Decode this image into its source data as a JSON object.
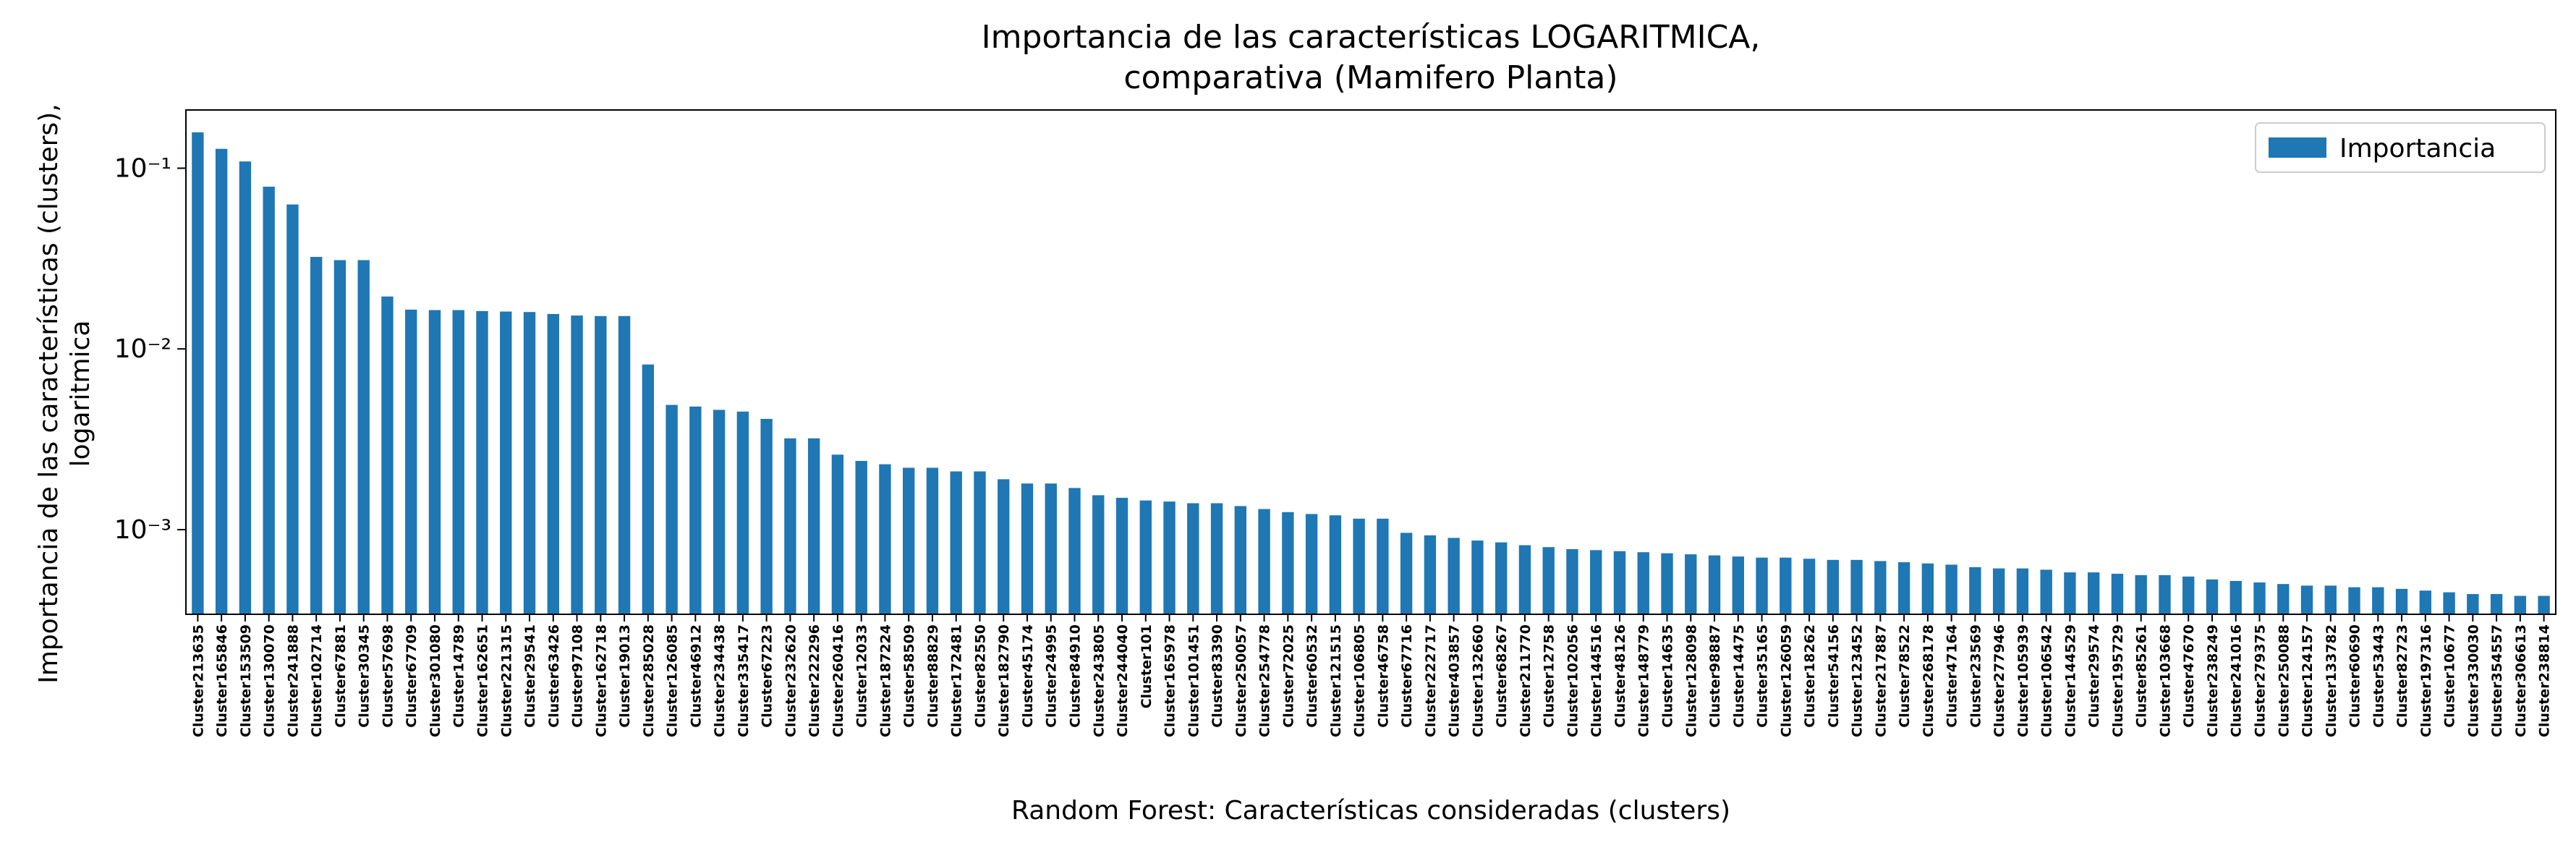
{
  "chart_data": {
    "type": "bar",
    "title": "Importancia de las características LOGARITMICA,\ncomparativa (Mamifero Planta)",
    "ylabel": "Importancia de las características (clusters),\nlogaritmica",
    "xlabel": "Random Forest: Características consideradas (clusters)",
    "log_y": true,
    "legend": "upper right",
    "ylim": [
      0.00034,
      0.21
    ],
    "yticks": [
      {
        "value": 0.001,
        "label": "10⁻³"
      },
      {
        "value": 0.01,
        "label": "10⁻²"
      },
      {
        "value": 0.1,
        "label": "10⁻¹"
      }
    ],
    "categories": [
      "Cluster213635",
      "Cluster165846",
      "Cluster153509",
      "Cluster130070",
      "Cluster241888",
      "Cluster102714",
      "Cluster67881",
      "Cluster30345",
      "Cluster57698",
      "Cluster67709",
      "Cluster301080",
      "Cluster14789",
      "Cluster162651",
      "Cluster221315",
      "Cluster29541",
      "Cluster63426",
      "Cluster97108",
      "Cluster162718",
      "Cluster19013",
      "Cluster285028",
      "Cluster126085",
      "Cluster46912",
      "Cluster234438",
      "Cluster335417",
      "Cluster67223",
      "Cluster232620",
      "Cluster222296",
      "Cluster260416",
      "Cluster12033",
      "Cluster187224",
      "Cluster58509",
      "Cluster88829",
      "Cluster172481",
      "Cluster82550",
      "Cluster182790",
      "Cluster45174",
      "Cluster24995",
      "Cluster84910",
      "Cluster243805",
      "Cluster244040",
      "Cluster101",
      "Cluster165978",
      "Cluster101451",
      "Cluster83390",
      "Cluster250057",
      "Cluster254778",
      "Cluster72025",
      "Cluster60532",
      "Cluster121515",
      "Cluster106805",
      "Cluster46758",
      "Cluster67716",
      "Cluster222717",
      "Cluster403857",
      "Cluster132660",
      "Cluster68267",
      "Cluster211770",
      "Cluster12758",
      "Cluster102056",
      "Cluster144516",
      "Cluster48126",
      "Cluster148779",
      "Cluster14635",
      "Cluster128098",
      "Cluster98887",
      "Cluster14475",
      "Cluster35165",
      "Cluster126059",
      "Cluster18262",
      "Cluster54156",
      "Cluster123452",
      "Cluster217887",
      "Cluster78522",
      "Cluster268178",
      "Cluster47164",
      "Cluster23569",
      "Cluster277946",
      "Cluster105939",
      "Cluster106542",
      "Cluster144529",
      "Cluster29574",
      "Cluster195729",
      "Cluster85261",
      "Cluster103668",
      "Cluster47670",
      "Cluster238249",
      "Cluster241016",
      "Cluster279375",
      "Cluster250088",
      "Cluster124157",
      "Cluster133782",
      "Cluster60690",
      "Cluster53443",
      "Cluster82723",
      "Cluster197316",
      "Cluster10677",
      "Cluster330030",
      "Cluster354557",
      "Cluster306613",
      "Cluster238814"
    ],
    "series": [
      {
        "name": "Importancia",
        "color": "#1f77b4",
        "values": [
          0.158,
          0.128,
          0.109,
          0.079,
          0.063,
          0.0323,
          0.031,
          0.031,
          0.0195,
          0.0165,
          0.0164,
          0.0164,
          0.0162,
          0.0161,
          0.016,
          0.0156,
          0.0153,
          0.0152,
          0.0152,
          0.0082,
          0.0049,
          0.0048,
          0.0046,
          0.0045,
          0.0041,
          0.0032,
          0.0032,
          0.0026,
          0.0024,
          0.0023,
          0.0022,
          0.0022,
          0.0021,
          0.0021,
          0.0019,
          0.0018,
          0.0018,
          0.0017,
          0.00155,
          0.0015,
          0.00145,
          0.00143,
          0.0014,
          0.0014,
          0.00135,
          0.0013,
          0.00125,
          0.00122,
          0.0012,
          0.00115,
          0.00115,
          0.00096,
          0.00093,
          0.0009,
          0.00087,
          0.00085,
          0.00082,
          0.0008,
          0.00078,
          0.00077,
          0.00076,
          0.00075,
          0.00074,
          0.00073,
          0.00072,
          0.00071,
          0.0007,
          0.0007,
          0.00069,
          0.00068,
          0.00068,
          0.00067,
          0.00066,
          0.00065,
          0.00064,
          0.00062,
          0.00061,
          0.00061,
          0.0006,
          0.00058,
          0.00058,
          0.00057,
          0.00056,
          0.00056,
          0.00055,
          0.00053,
          0.00052,
          0.00051,
          0.0005,
          0.00049,
          0.00049,
          0.00048,
          0.00048,
          0.00047,
          0.00046,
          0.00045,
          0.00044,
          0.00044,
          0.00043,
          0.00043
        ]
      }
    ]
  }
}
